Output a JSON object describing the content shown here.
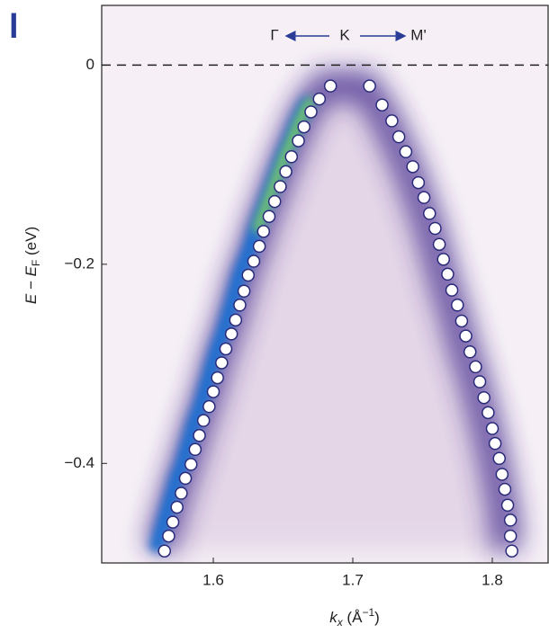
{
  "chart_data": {
    "type": "scatter",
    "panel_label": "l",
    "annotation": {
      "left": "Γ",
      "center": "K",
      "right": "M'"
    },
    "xlabel": [
      "k",
      "x",
      " (Å",
      "−1",
      ")"
    ],
    "ylabel": [
      "E − E",
      "F",
      " (eV)"
    ],
    "xlim": [
      1.52,
      1.84
    ],
    "ylim": [
      -0.5,
      0.06
    ],
    "xticks": [
      1.6,
      1.7,
      1.8
    ],
    "yticks": [
      0,
      {
        "value": -0.2,
        "label": "−0.2"
      },
      {
        "value": -0.4,
        "label": "−0.4"
      }
    ],
    "hline": 0,
    "color": "#ffffff",
    "edge_color": "#2a2a7a",
    "x": [
      1.565,
      1.568,
      1.571,
      1.574,
      1.577,
      1.58,
      1.584,
      1.587,
      1.59,
      1.593,
      1.597,
      1.6,
      1.603,
      1.606,
      1.609,
      1.613,
      1.616,
      1.619,
      1.622,
      1.625,
      1.629,
      1.633,
      1.636,
      1.64,
      1.644,
      1.648,
      1.652,
      1.656,
      1.661,
      1.665,
      1.67,
      1.676,
      1.684,
      1.712,
      1.721,
      1.728,
      1.733,
      1.738,
      1.743,
      1.747,
      1.751,
      1.755,
      1.759,
      1.762,
      1.765,
      1.768,
      1.771,
      1.775,
      1.778,
      1.781,
      1.784,
      1.788,
      1.791,
      1.794,
      1.797,
      1.8,
      1.802,
      1.805,
      1.807,
      1.809,
      1.811,
      1.813,
      1.813,
      1.814
    ],
    "values": [
      -0.488,
      -0.473,
      -0.459,
      -0.444,
      -0.43,
      -0.415,
      -0.401,
      -0.386,
      -0.372,
      -0.357,
      -0.343,
      -0.328,
      -0.314,
      -0.299,
      -0.285,
      -0.27,
      -0.256,
      -0.241,
      -0.227,
      -0.211,
      -0.197,
      -0.182,
      -0.167,
      -0.152,
      -0.137,
      -0.122,
      -0.107,
      -0.092,
      -0.076,
      -0.062,
      -0.047,
      -0.034,
      -0.021,
      -0.021,
      -0.04,
      -0.056,
      -0.072,
      -0.087,
      -0.102,
      -0.118,
      -0.133,
      -0.149,
      -0.164,
      -0.18,
      -0.195,
      -0.21,
      -0.226,
      -0.241,
      -0.257,
      -0.272,
      -0.288,
      -0.303,
      -0.318,
      -0.334,
      -0.349,
      -0.365,
      -0.38,
      -0.395,
      -0.411,
      -0.426,
      -0.442,
      -0.457,
      -0.473,
      -0.488
    ]
  }
}
